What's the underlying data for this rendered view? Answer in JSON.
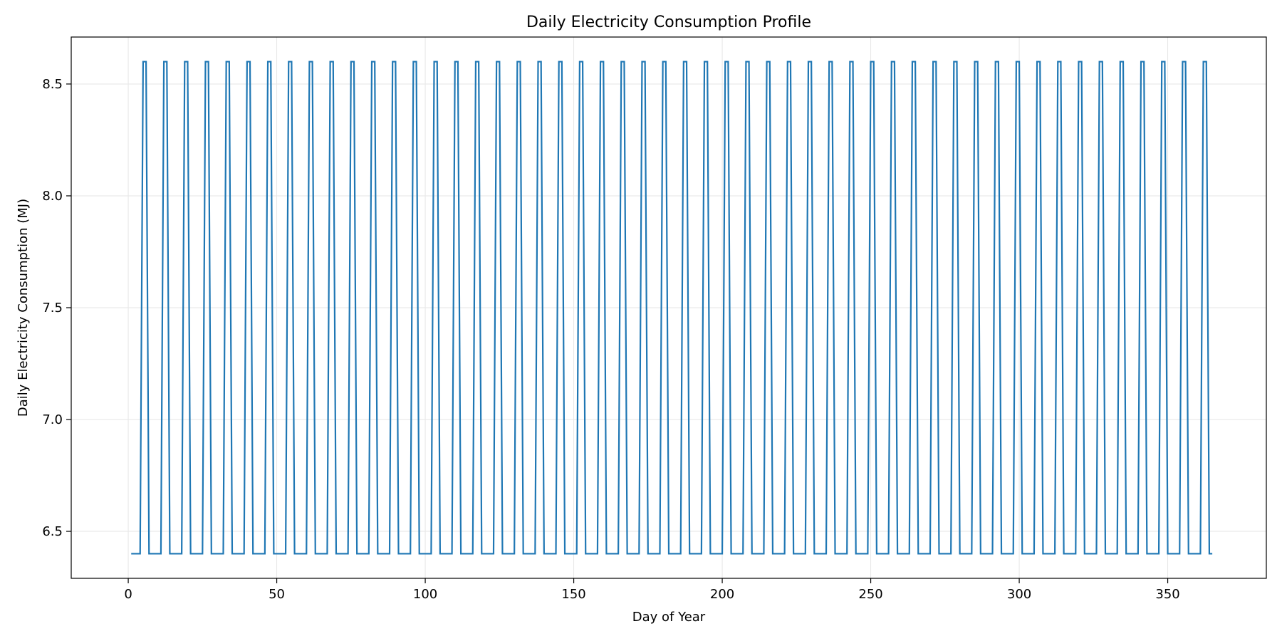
{
  "chart_data": {
    "type": "line",
    "title": "Daily Electricity Consumption Profile",
    "xlabel": "Day of Year",
    "ylabel": "Daily Electricity Consumption (MJ)",
    "xlim": [
      -19.2,
      383.2
    ],
    "ylim": [
      6.29,
      8.71
    ],
    "x_ticks": [
      0,
      50,
      100,
      150,
      200,
      250,
      300,
      350
    ],
    "y_ticks": [
      6.5,
      7.0,
      7.5,
      8.0,
      8.5
    ],
    "y_tick_labels": [
      "6.5",
      "7.0",
      "7.5",
      "8.0",
      "8.5"
    ],
    "grid": true,
    "colors": {
      "line": "#1f77b4"
    },
    "series": [
      {
        "x_start": 1,
        "x_end": 365,
        "pattern": "weekly",
        "high_days_mod7": [
          5,
          6
        ],
        "low_value": 6.4,
        "high_value": 8.6
      }
    ]
  }
}
